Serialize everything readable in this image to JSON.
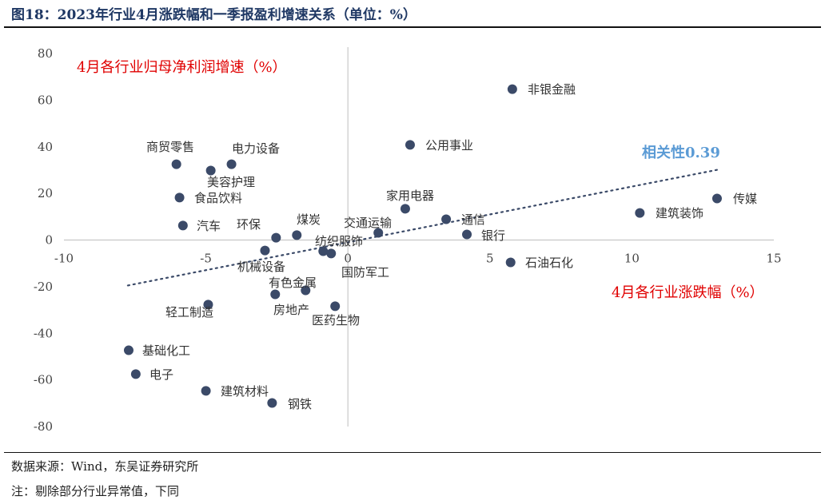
{
  "title": "图18：2023年行业4月涨跌幅和一季报盈利增速关系（单位：%）",
  "footer": {
    "source": "数据来源：Wind，东吴证券研究所",
    "note": "注：剔除部分行业异常值，下同"
  },
  "chart_data": {
    "type": "scatter",
    "title": "2023年行业4月涨跌幅和一季报盈利增速关系（单位：%）",
    "xlabel": "4月各行业涨跌幅（%）",
    "ylabel": "4月各行业归母净利润增速（%）",
    "xlim": [
      -10,
      15
    ],
    "ylim": [
      -80,
      80
    ],
    "xticks": [
      -10,
      -5,
      0,
      5,
      10,
      15
    ],
    "yticks": [
      80,
      60,
      40,
      20,
      0,
      -20,
      -40,
      -60,
      -80
    ],
    "annotation": "相关性0.39",
    "trendline": {
      "x": [
        -7.75,
        13.0
      ],
      "y": [
        -19.5,
        30.1
      ]
    },
    "colors": {
      "point": "#3b4a68",
      "label_red": "#e00000",
      "annotation": "#5b9bd5",
      "trend": "#3b4a68"
    },
    "points": [
      {
        "name": "非银金融",
        "x": 5.79,
        "y": 64.7
      },
      {
        "name": "公用事业",
        "x": 2.19,
        "y": 40.8
      },
      {
        "name": "商贸零售",
        "x": -6.04,
        "y": 32.5
      },
      {
        "name": "电力设备",
        "x": -4.1,
        "y": 32.5
      },
      {
        "name": "美容护理",
        "x": -4.83,
        "y": 29.8
      },
      {
        "name": "食品饮料",
        "x": -5.93,
        "y": 18.2
      },
      {
        "name": "家用电器",
        "x": 2.02,
        "y": 13.4
      },
      {
        "name": "通信",
        "x": 3.46,
        "y": 8.9
      },
      {
        "name": "传媒",
        "x": 13.0,
        "y": 17.8
      },
      {
        "name": "建筑装饰",
        "x": 10.28,
        "y": 11.6
      },
      {
        "name": "汽车",
        "x": -5.81,
        "y": 6.2
      },
      {
        "name": "环保",
        "x": -2.53,
        "y": 1.0
      },
      {
        "name": "煤炭",
        "x": -1.8,
        "y": 2.1
      },
      {
        "name": "交通运输",
        "x": 1.07,
        "y": 3.1
      },
      {
        "name": "银行",
        "x": 4.19,
        "y": 2.4
      },
      {
        "name": "纺织服饰",
        "x": -0.87,
        "y": -4.8
      },
      {
        "name": "国防军工",
        "x": -0.59,
        "y": -5.8
      },
      {
        "name": "机械设备",
        "x": -2.92,
        "y": -4.5
      },
      {
        "name": "石油石化",
        "x": 5.73,
        "y": -9.6
      },
      {
        "name": "有色金属",
        "x": -1.49,
        "y": -21.6
      },
      {
        "name": "房地产",
        "x": -2.56,
        "y": -23.3
      },
      {
        "name": "医药生物",
        "x": -0.45,
        "y": -28.4
      },
      {
        "name": "轻工制造",
        "x": -4.92,
        "y": -27.7
      },
      {
        "name": "基础化工",
        "x": -7.72,
        "y": -47.3
      },
      {
        "name": "电子",
        "x": -7.47,
        "y": -57.5
      },
      {
        "name": "建筑材料",
        "x": -5.0,
        "y": -64.7
      },
      {
        "name": "钢铁",
        "x": -2.67,
        "y": -69.9
      }
    ]
  }
}
